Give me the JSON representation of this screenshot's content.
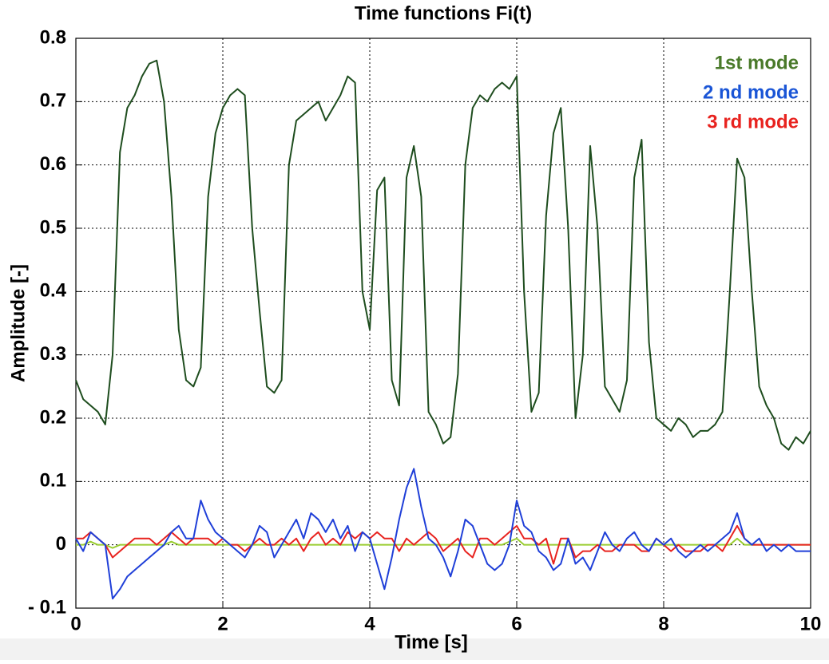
{
  "chart_data": {
    "type": "line",
    "title": "Time functions Fi(t)",
    "x_label": "Time [s]",
    "y_label": "Amplitude [-]",
    "xlim": [
      0,
      10
    ],
    "xticks": [
      0,
      2,
      4,
      6,
      8,
      10
    ],
    "ylim": [
      -0.1,
      0.8
    ],
    "yticks": [
      0.8,
      0.7,
      0.6,
      0.5,
      0.4,
      0.3,
      0.2,
      0.1,
      0,
      {
        "value": -0.1,
        "label": "- 0.1"
      }
    ],
    "grid": true,
    "legend": "upper right",
    "x": [
      0,
      0.1,
      0.2,
      0.3,
      0.4,
      0.5,
      0.6,
      0.7,
      0.8,
      0.9,
      1,
      1.1,
      1.2,
      1.3,
      1.4,
      1.5,
      1.6,
      1.7,
      1.8,
      1.9,
      2,
      2.1,
      2.2,
      2.3,
      2.4,
      2.5,
      2.6,
      2.7,
      2.8,
      2.9,
      3,
      3.1,
      3.2,
      3.3,
      3.4,
      3.5,
      3.6,
      3.7,
      3.8,
      3.9,
      4,
      4.1,
      4.2,
      4.3,
      4.4,
      4.5,
      4.6,
      4.7,
      4.8,
      4.9,
      5,
      5.1,
      5.2,
      5.3,
      5.4,
      5.5,
      5.6,
      5.7,
      5.8,
      5.9,
      6,
      6.1,
      6.2,
      6.3,
      6.4,
      6.5,
      6.6,
      6.7,
      6.8,
      6.9,
      7,
      7.1,
      7.2,
      7.3,
      7.4,
      7.5,
      7.6,
      7.7,
      7.8,
      7.9,
      8,
      8.1,
      8.2,
      8.3,
      8.4,
      8.5,
      8.6,
      8.7,
      8.8,
      8.9,
      9,
      9.1,
      9.2,
      9.3,
      9.4,
      9.5,
      9.6,
      9.7,
      9.8,
      9.9,
      10
    ],
    "series": [
      {
        "color": "#9acd32",
        "values": [
          0,
          0,
          0.005,
          0,
          0,
          -0.005,
          0,
          0,
          0,
          0,
          0,
          0,
          0,
          0.005,
          0,
          0,
          0,
          0,
          0,
          0,
          0,
          0,
          0,
          0,
          0,
          0,
          0,
          0,
          0,
          0,
          0,
          0,
          0,
          0,
          0,
          0,
          0,
          0,
          0,
          0,
          0,
          0,
          0,
          0,
          0,
          0,
          0,
          0,
          0,
          0,
          0,
          0,
          0,
          0,
          0,
          0,
          0,
          0,
          0,
          0.005,
          0.01,
          0,
          0,
          0,
          0,
          0,
          0,
          0,
          0,
          0,
          0,
          0,
          0,
          0,
          0,
          0,
          0,
          0,
          0,
          0,
          0,
          0,
          0,
          0,
          0,
          0,
          0,
          0,
          0,
          0,
          0.01,
          0,
          0,
          0,
          0,
          0,
          0,
          0,
          0,
          0,
          0
        ]
      },
      {
        "name": "3 rd mode",
        "color": "#e8231f",
        "values": [
          0.01,
          0.01,
          0.02,
          0.01,
          0,
          -0.02,
          -0.01,
          0,
          0.01,
          0.01,
          0.01,
          0,
          0.01,
          0.02,
          0.01,
          0,
          0.01,
          0.01,
          0.01,
          0,
          0.01,
          0,
          0,
          -0.01,
          0,
          0.01,
          0,
          0,
          0.01,
          0,
          0.01,
          -0.01,
          0.01,
          0.02,
          0,
          0.01,
          0,
          0.02,
          0.01,
          0.02,
          0.01,
          0.02,
          0.01,
          0.01,
          -0.01,
          0.01,
          0,
          0.01,
          0.02,
          0.01,
          -0.01,
          0,
          0.01,
          -0.01,
          -0.02,
          0.01,
          0.01,
          0,
          0.01,
          0.02,
          0.03,
          0.01,
          0.01,
          0,
          0.01,
          -0.03,
          0.01,
          0.01,
          -0.02,
          -0.01,
          -0.01,
          0,
          -0.01,
          -0.01,
          0,
          0,
          0,
          -0.01,
          -0.01,
          0.01,
          0,
          -0.01,
          0,
          -0.01,
          -0.01,
          -0.01,
          0,
          0,
          -0.01,
          0.01,
          0.03,
          0.01,
          0,
          0,
          0,
          0,
          0,
          0,
          0,
          0,
          0
        ]
      },
      {
        "name": "2 nd mode",
        "color": "#1f3fd8",
        "values": [
          0.01,
          -0.01,
          0.02,
          0.01,
          0,
          -0.085,
          -0.07,
          -0.05,
          -0.04,
          -0.03,
          -0.02,
          -0.01,
          0,
          0.02,
          0.03,
          0.01,
          0.01,
          0.07,
          0.04,
          0.02,
          0.01,
          0,
          -0.01,
          -0.02,
          0,
          0.03,
          0.02,
          -0.02,
          0,
          0.02,
          0.04,
          0.01,
          0.05,
          0.04,
          0.02,
          0.04,
          0.01,
          0.03,
          -0.01,
          0.02,
          0.01,
          -0.03,
          -0.07,
          -0.02,
          0.04,
          0.09,
          0.12,
          0.06,
          0.01,
          0,
          -0.02,
          -0.05,
          -0.01,
          0.04,
          0.03,
          0,
          -0.03,
          -0.04,
          -0.03,
          0,
          0.07,
          0.03,
          0.02,
          -0.01,
          -0.02,
          -0.04,
          -0.03,
          0.01,
          -0.03,
          -0.02,
          -0.04,
          -0.01,
          0.02,
          0,
          -0.01,
          0.01,
          0.02,
          0,
          -0.01,
          0.01,
          0,
          0.01,
          -0.01,
          -0.02,
          -0.01,
          0,
          -0.01,
          0,
          0.01,
          0.02,
          0.05,
          0.01,
          0,
          0.01,
          -0.01,
          0,
          -0.01,
          0,
          -0.01,
          -0.01,
          -0.01
        ]
      },
      {
        "name": "1st mode",
        "color": "#1e4d1e",
        "values": [
          0.26,
          0.23,
          0.22,
          0.21,
          0.19,
          0.3,
          0.62,
          0.69,
          0.71,
          0.74,
          0.76,
          0.765,
          0.7,
          0.55,
          0.34,
          0.26,
          0.25,
          0.28,
          0.55,
          0.65,
          0.69,
          0.71,
          0.72,
          0.71,
          0.5,
          0.37,
          0.25,
          0.24,
          0.26,
          0.6,
          0.67,
          0.68,
          0.69,
          0.7,
          0.67,
          0.69,
          0.71,
          0.74,
          0.73,
          0.4,
          0.34,
          0.56,
          0.58,
          0.26,
          0.22,
          0.58,
          0.63,
          0.55,
          0.21,
          0.19,
          0.16,
          0.17,
          0.27,
          0.6,
          0.69,
          0.71,
          0.7,
          0.72,
          0.73,
          0.72,
          0.74,
          0.4,
          0.21,
          0.24,
          0.52,
          0.65,
          0.69,
          0.5,
          0.2,
          0.3,
          0.63,
          0.5,
          0.25,
          0.23,
          0.21,
          0.26,
          0.58,
          0.64,
          0.32,
          0.2,
          0.19,
          0.18,
          0.2,
          0.19,
          0.17,
          0.18,
          0.18,
          0.19,
          0.21,
          0.4,
          0.61,
          0.58,
          0.4,
          0.25,
          0.22,
          0.2,
          0.16,
          0.15,
          0.17,
          0.16,
          0.18
        ]
      }
    ],
    "legend_colors": [
      "#4a7a2a",
      "#1a55d6",
      "#e8231f"
    ]
  }
}
